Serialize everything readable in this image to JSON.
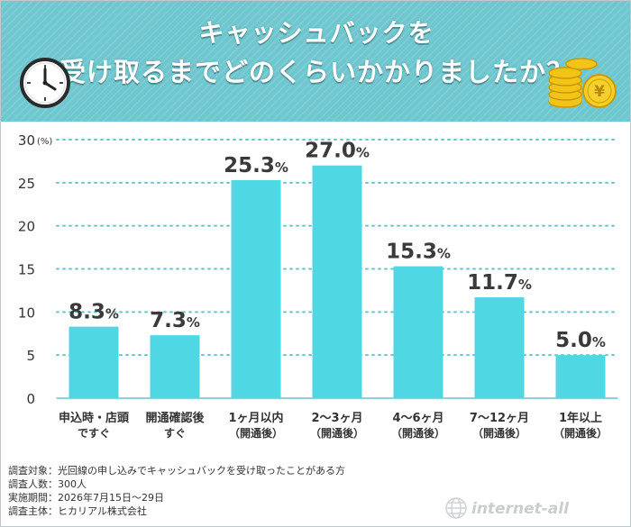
{
  "header": {
    "title_line1": "キャッシュバックを",
    "title_line2": "受け取るまでどのくらいかかりましたか？"
  },
  "icons": [
    "clock-icon",
    "coins-icon",
    "globe-icon"
  ],
  "colors": {
    "bar": "#4fd7e3",
    "header": "#6ec6cf",
    "grid": "#66c6cf"
  },
  "chart_data": {
    "type": "bar",
    "categories": [
      [
        "申込時・店頭",
        "ですぐ"
      ],
      [
        "開通確認後",
        "すぐ"
      ],
      [
        "1ヶ月以内",
        "（開通後）"
      ],
      [
        "2〜3ヶ月",
        "（開通後）"
      ],
      [
        "4〜6ヶ月",
        "（開通後）"
      ],
      [
        "7〜12ヶ月",
        "（開通後）"
      ],
      [
        "1年以上",
        "（開通後）"
      ]
    ],
    "values": [
      8.3,
      7.3,
      25.3,
      27.0,
      15.3,
      11.7,
      5.0
    ],
    "value_labels": [
      {
        "main": "8.3",
        "unit": "%"
      },
      {
        "main": "7.3",
        "unit": "%"
      },
      {
        "main": "25.3",
        "unit": "%"
      },
      {
        "main": "27.0",
        "unit": "%"
      },
      {
        "main": "15.3",
        "unit": "%"
      },
      {
        "main": "11.7",
        "unit": "%"
      },
      {
        "main": "5.0",
        "unit": "%"
      }
    ],
    "ylim": [
      0,
      30
    ],
    "yticks": [
      "0",
      "5",
      "10",
      "15",
      "20",
      "25",
      "30"
    ],
    "yunit": "(%)",
    "grid": true
  },
  "footer": {
    "lines": [
      "調査対象：光回線の申し込みでキャッシュバックを受け取ったことがある方",
      "調査人数：300人",
      "実施期間：2026年7月15日〜29日",
      "調査主体：ヒカリアル株式会社"
    ]
  },
  "logo": {
    "text": "internet-all"
  }
}
